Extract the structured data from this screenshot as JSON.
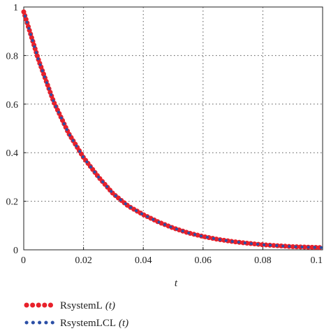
{
  "chart_data": {
    "type": "line",
    "xlabel": "t",
    "xlim": [
      0,
      0.1
    ],
    "ylim": [
      0,
      1
    ],
    "xticks": [
      "0",
      "0.02",
      "0.04",
      "0.06",
      "0.08",
      "0.1"
    ],
    "yticks": [
      "0",
      "0.2",
      "0.4",
      "0.6",
      "0.8",
      "1"
    ],
    "grid": true,
    "legend_position": "bottom-left",
    "x": [
      0,
      0.005,
      0.01,
      0.015,
      0.02,
      0.025,
      0.03,
      0.035,
      0.04,
      0.045,
      0.05,
      0.055,
      0.06,
      0.065,
      0.07,
      0.075,
      0.08,
      0.085,
      0.09,
      0.095,
      0.1
    ],
    "series": [
      {
        "name": "RsystemL",
        "legend_suffix": "(t)",
        "color": "#e8202a",
        "values": [
          0.98,
          0.78,
          0.61,
          0.48,
          0.38,
          0.3,
          0.23,
          0.18,
          0.145,
          0.115,
          0.09,
          0.07,
          0.055,
          0.043,
          0.034,
          0.027,
          0.021,
          0.017,
          0.013,
          0.011,
          0.009
        ]
      },
      {
        "name": "RsystemLCL",
        "legend_suffix": "(t)",
        "color": "#2b4fa6",
        "values": [
          0.98,
          0.78,
          0.61,
          0.48,
          0.38,
          0.3,
          0.23,
          0.18,
          0.145,
          0.115,
          0.09,
          0.07,
          0.055,
          0.043,
          0.034,
          0.027,
          0.021,
          0.017,
          0.013,
          0.011,
          0.009
        ]
      }
    ]
  }
}
